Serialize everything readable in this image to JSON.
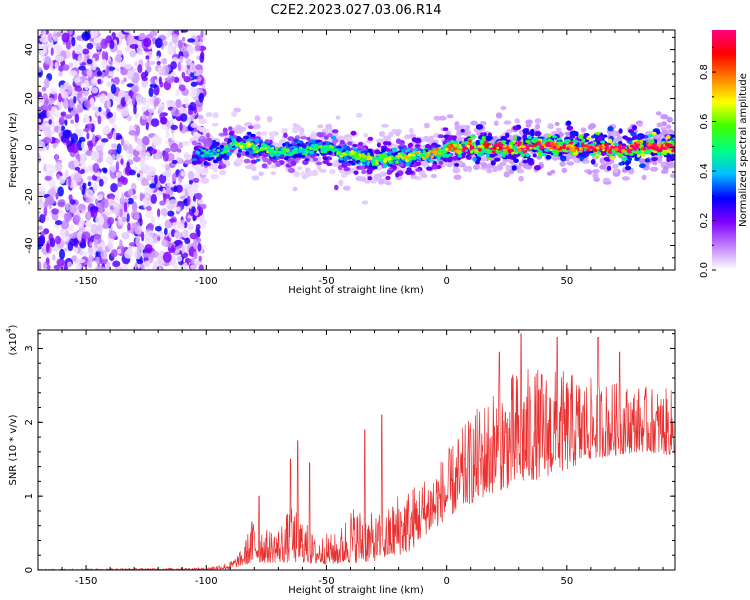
{
  "title": "C2E2.2023.027.03.06.R14",
  "chart_data": [
    {
      "type": "heatmap",
      "xlabel": "Height of straight line (km)",
      "ylabel": "Frequency (Hz)",
      "xlim": [
        -170,
        95
      ],
      "ylim": [
        -50,
        48
      ],
      "xticks": [
        -150,
        -100,
        -50,
        0,
        50
      ],
      "yticks": [
        -40,
        -20,
        0,
        20,
        40
      ],
      "colorbar": {
        "label": "Normalized spectral amplitude",
        "range": [
          0,
          0.97
        ],
        "ticks": [
          "0.0",
          "0.2",
          "0.4",
          "0.6",
          "0.8"
        ],
        "colors": [
          "#ffffff",
          "#c080ff",
          "#8000ff",
          "#0000ff",
          "#00c0ff",
          "#00ff80",
          "#40ff00",
          "#ffff00",
          "#ff8000",
          "#ff0000",
          "#ff0080"
        ]
      },
      "ridge": {
        "x": [
          -105,
          -95,
          -88,
          -80,
          -70,
          -60,
          -50,
          -40,
          -30,
          -20,
          -10,
          0,
          10,
          20,
          30,
          40,
          50,
          60,
          70,
          80,
          95
        ],
        "freq": [
          -3,
          -2,
          2,
          0,
          -2,
          -1,
          0,
          -3,
          -5,
          -4,
          -3,
          -1,
          0,
          0,
          0,
          1,
          0,
          0,
          -1,
          0,
          0
        ],
        "peak_amplitude": [
          0.35,
          0.45,
          0.55,
          0.55,
          0.5,
          0.5,
          0.5,
          0.55,
          0.6,
          0.6,
          0.6,
          0.7,
          0.8,
          0.85,
          0.85,
          0.9,
          0.9,
          0.9,
          0.95,
          0.95,
          0.95
        ]
      },
      "noise_region": {
        "x": [
          -170,
          -105
        ],
        "freq": [
          -50,
          48
        ],
        "amplitude": [
          0.02,
          0.3
        ]
      }
    },
    {
      "type": "line",
      "xlabel": "Height of straight line (km)",
      "ylabel": "SNR (10 * v/v)",
      "yscale_label": "(x10",
      "yscale_exp": "4",
      "xlim": [
        -170,
        95
      ],
      "ylim": [
        0,
        3.25
      ],
      "xticks": [
        -150,
        -100,
        -50,
        0,
        50
      ],
      "yticks": [
        0,
        1,
        2,
        3
      ],
      "color": "#e83030",
      "envelope": {
        "x": [
          -170,
          -100,
          -90,
          -85,
          -80,
          -75,
          -70,
          -65,
          -60,
          -55,
          -50,
          -45,
          -40,
          -35,
          -30,
          -25,
          -20,
          -15,
          -10,
          -5,
          0,
          10,
          20,
          30,
          40,
          50,
          60,
          70,
          80,
          95
        ],
        "low": [
          0,
          0.002,
          0.01,
          0.06,
          0.1,
          0.1,
          0.1,
          0.1,
          0.1,
          0.08,
          0.08,
          0.08,
          0.1,
          0.1,
          0.12,
          0.15,
          0.2,
          0.25,
          0.45,
          0.55,
          0.7,
          0.9,
          1.05,
          1.15,
          1.25,
          1.35,
          1.5,
          1.55,
          1.6,
          1.55
        ],
        "high": [
          0.01,
          0.03,
          0.12,
          0.28,
          0.8,
          0.55,
          0.6,
          0.85,
          0.75,
          0.45,
          0.5,
          0.5,
          0.9,
          0.85,
          0.75,
          0.8,
          1.1,
          1.15,
          1.25,
          1.45,
          1.6,
          2.1,
          2.5,
          2.75,
          2.75,
          2.7,
          2.6,
          2.55,
          2.5,
          2.45
        ]
      },
      "spikes": [
        {
          "x": -78,
          "y": 1.0
        },
        {
          "x": -65,
          "y": 1.5
        },
        {
          "x": -62,
          "y": 1.75
        },
        {
          "x": -57,
          "y": 1.45
        },
        {
          "x": -34,
          "y": 1.9
        },
        {
          "x": -27,
          "y": 2.1
        },
        {
          "x": 22,
          "y": 2.95
        },
        {
          "x": 31,
          "y": 3.2
        },
        {
          "x": 46,
          "y": 3.15
        },
        {
          "x": 63,
          "y": 3.15
        },
        {
          "x": 72,
          "y": 2.95
        }
      ]
    }
  ]
}
